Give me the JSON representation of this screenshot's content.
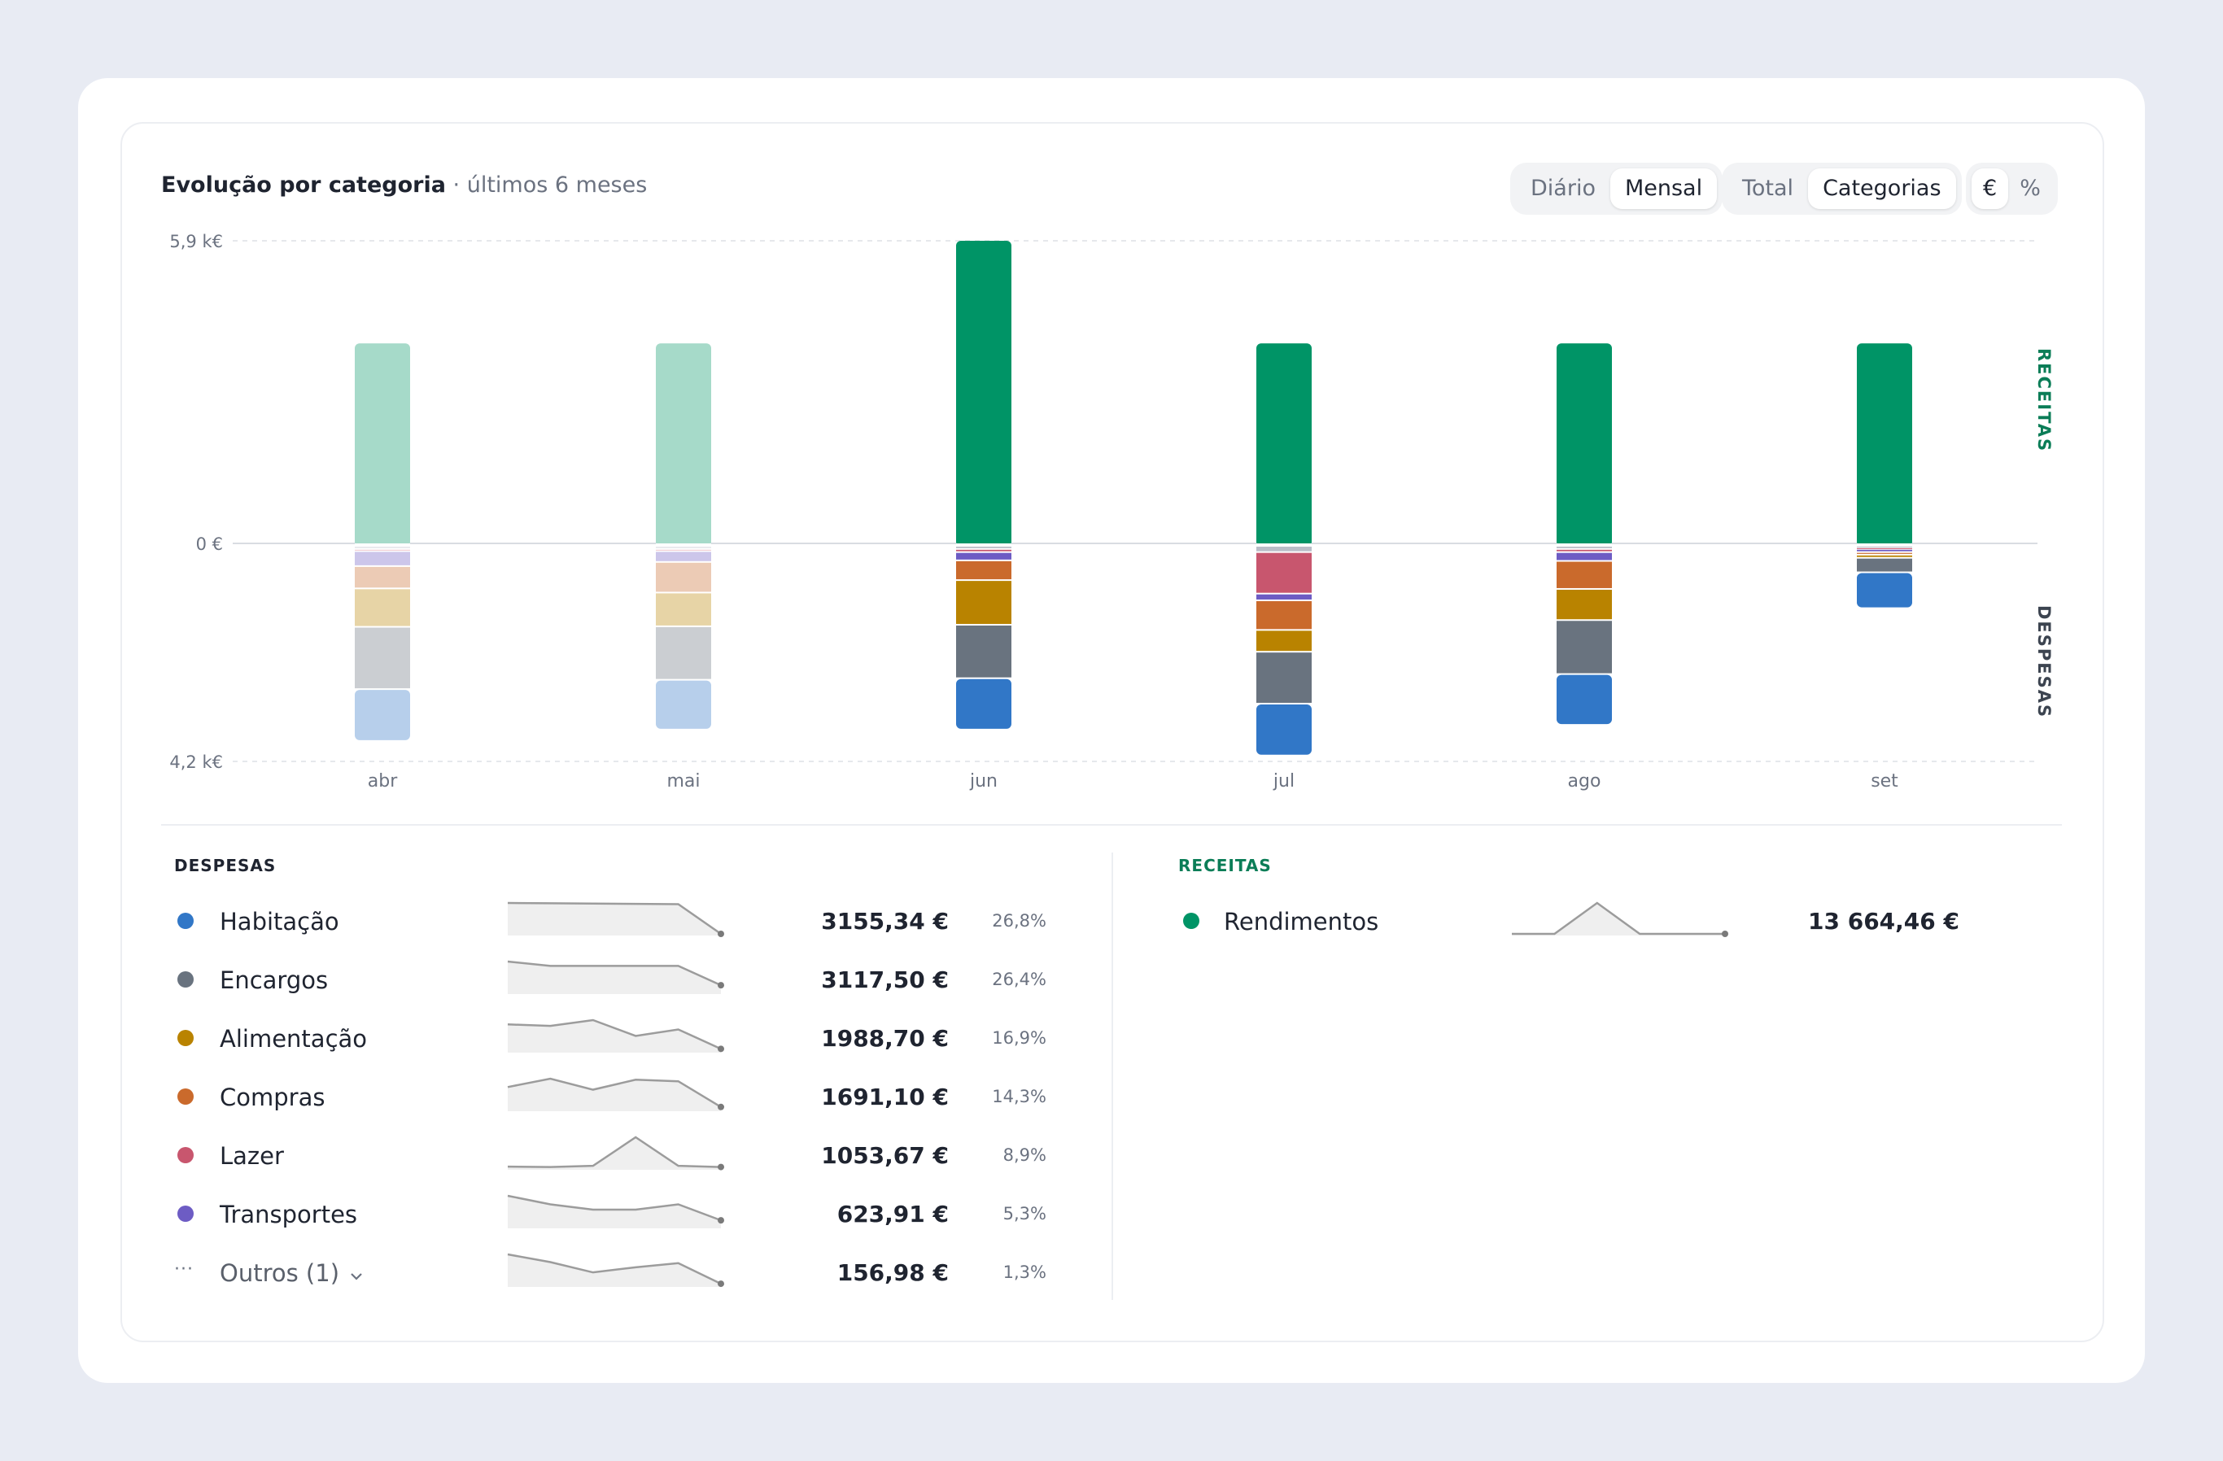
{
  "header": {
    "title": "Evolução por categoria",
    "subtitle": "· últimos 6 meses"
  },
  "controls": {
    "period": {
      "options": [
        "Diário",
        "Mensal"
      ],
      "selected": "Mensal"
    },
    "mode": {
      "options": [
        "Total",
        "Categorias"
      ],
      "selected": "Categorias"
    },
    "unit": {
      "options": [
        "€",
        "%"
      ],
      "selected": "€"
    }
  },
  "chart_data": {
    "type": "bar",
    "stacked": true,
    "categories": [
      "abr",
      "mai",
      "jun",
      "jul",
      "ago",
      "set"
    ],
    "y_ticks": {
      "top": "5,9 k€",
      "zero": "0 €",
      "bottom": "4,2 k€"
    },
    "ylim": [
      -4200,
      5900
    ],
    "side_labels": {
      "positive": "RECEITAS",
      "negative": "DESPESAS"
    },
    "highlighted_from_index": 2,
    "income_series": [
      {
        "name": "Rendimentos",
        "color": "#009466",
        "values": [
          3900,
          3900,
          5900,
          3900,
          3900,
          3900
        ]
      }
    ],
    "expense_series": [
      {
        "name": "Outros",
        "color": "#b9bec8",
        "values": [
          60,
          60,
          60,
          120,
          60,
          30
        ]
      },
      {
        "name": "Lazer",
        "color": "#c8566e",
        "values": [
          40,
          40,
          60,
          800,
          60,
          30
        ]
      },
      {
        "name": "Transportes",
        "color": "#6d5cc4",
        "values": [
          290,
          210,
          160,
          130,
          170,
          60
        ]
      },
      {
        "name": "Compras",
        "color": "#ca6a2c",
        "values": [
          430,
          590,
          380,
          570,
          540,
          50
        ]
      },
      {
        "name": "Alimentação",
        "color": "#b98300",
        "values": [
          740,
          650,
          860,
          420,
          600,
          60
        ]
      },
      {
        "name": "Encargos",
        "color": "#69737f",
        "values": [
          1200,
          1030,
          1030,
          1000,
          1040,
          280
        ]
      },
      {
        "name": "Habitação",
        "color": "#3177c7",
        "values": [
          1000,
          960,
          990,
          1000,
          980,
          690
        ]
      }
    ]
  },
  "expenses": {
    "heading": "DESPESAS",
    "items": [
      {
        "name": "Habitação",
        "color": "#3177c7",
        "amount": "3155,34 €",
        "pct": "26,8%",
        "trend": [
          1000,
          990,
          980,
          970,
          960,
          0
        ]
      },
      {
        "name": "Encargos",
        "color": "#69737f",
        "amount": "3117,50 €",
        "pct": "26,4%",
        "trend": [
          1200,
          1030,
          1030,
          1030,
          1030,
          280
        ]
      },
      {
        "name": "Alimentação",
        "color": "#b98300",
        "amount": "1988,70 €",
        "pct": "16,9%",
        "trend": [
          740,
          700,
          860,
          420,
          600,
          60
        ]
      },
      {
        "name": "Compras",
        "color": "#ca6a2c",
        "amount": "1691,10 €",
        "pct": "14,3%",
        "trend": [
          430,
          590,
          380,
          570,
          540,
          50
        ]
      },
      {
        "name": "Lazer",
        "color": "#c8566e",
        "amount": "1053,67 €",
        "pct": "8,9%",
        "trend": [
          40,
          30,
          60,
          800,
          60,
          30
        ]
      },
      {
        "name": "Transportes",
        "color": "#6d5cc4",
        "amount": "623,91 €",
        "pct": "5,3%",
        "trend": [
          290,
          210,
          160,
          160,
          210,
          60
        ]
      },
      {
        "name": "Outros (1)",
        "color": "#9aa1ab",
        "amount": "156,98 €",
        "pct": "1,3%",
        "trend": [
          60,
          45,
          25,
          35,
          43,
          3
        ],
        "collapsible": true
      }
    ]
  },
  "income": {
    "heading": "RECEITAS",
    "items": [
      {
        "name": "Rendimentos",
        "color": "#009466",
        "amount": "13 664,46 €",
        "trend": [
          0,
          0,
          100,
          0,
          0,
          0
        ]
      }
    ]
  },
  "colors": {
    "accent": "#009466",
    "receitas_label": "#0b7d57",
    "despesas_label": "#3c4450"
  },
  "icons": {
    "outros": "more-dots-icon",
    "expand": "chevron-down-icon"
  }
}
